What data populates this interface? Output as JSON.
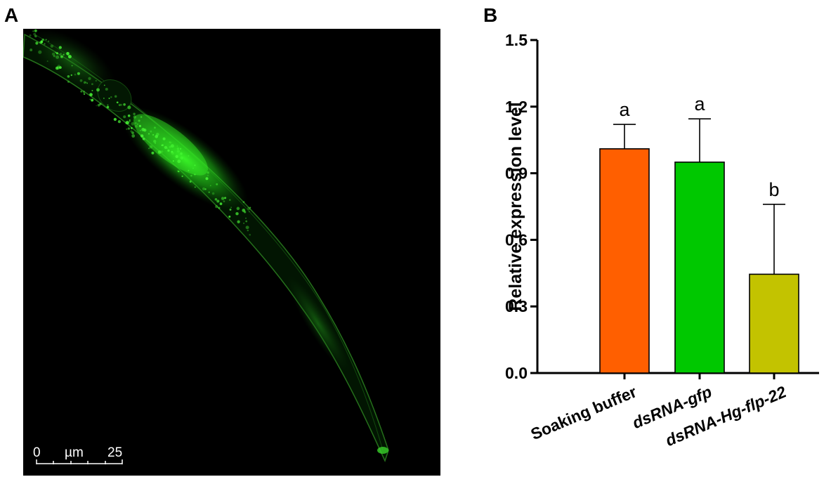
{
  "panels": {
    "a_label": "A",
    "b_label": "B"
  },
  "micrograph": {
    "scale_bar": {
      "start_label": "0",
      "unit_label": "µm",
      "end_label": "25",
      "color": "#ffffff"
    },
    "fluorescence_color": "#22e01a",
    "background_color": "#000000"
  },
  "chart_data": {
    "type": "bar",
    "categories": [
      "Soaking buffer",
      "dsRNA-gfp",
      "dsRNA-Hg-flp-22"
    ],
    "italic_categories": [
      false,
      true,
      true
    ],
    "values": [
      1.01,
      0.95,
      0.445
    ],
    "error_upper": [
      1.12,
      1.145,
      0.76
    ],
    "significance": [
      "a",
      "a",
      "b"
    ],
    "colors": [
      "#ff5f00",
      "#00c800",
      "#c3c300"
    ],
    "title": "",
    "xlabel": "",
    "ylabel": "Relative  expression level",
    "ylim": [
      0,
      1.5
    ],
    "yticks": [
      0.0,
      0.3,
      0.6,
      0.9,
      1.2,
      1.5
    ],
    "ytick_labels": [
      "0.0",
      "0.3",
      "0.6",
      "0.9",
      "1.2",
      "1.5"
    ],
    "grid": false,
    "legend": "none"
  }
}
